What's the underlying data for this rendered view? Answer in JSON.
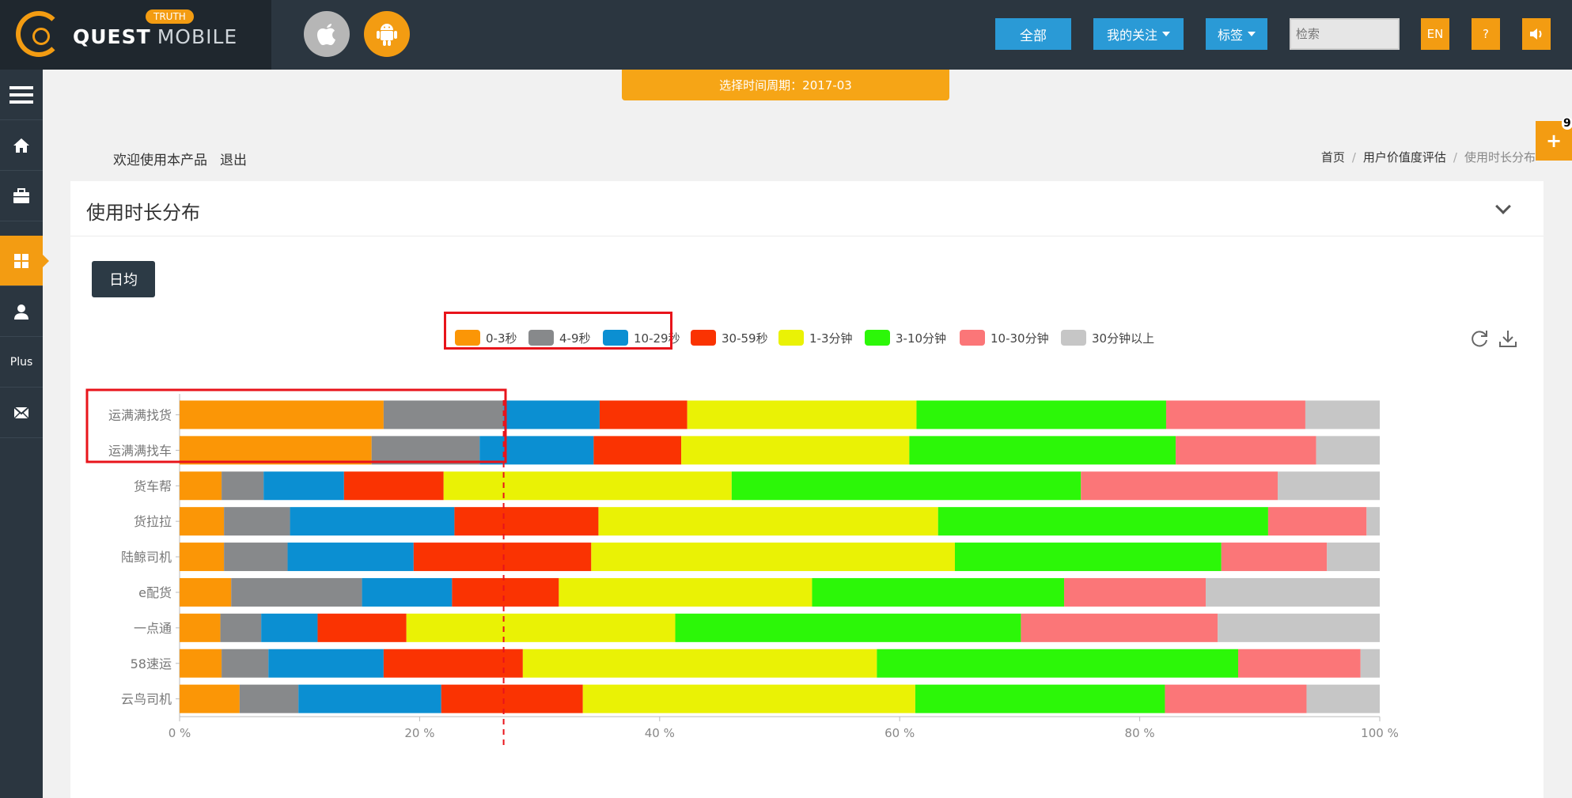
{
  "header": {
    "brand": "QUEST",
    "brand_sub": "MOBILE",
    "brand_tag": "TRUTH",
    "btn_all": "全部",
    "btn_follow": "我的关注",
    "btn_tags": "标签",
    "search_placeholder": "检索",
    "btn_lang": "EN",
    "btn_help": "?"
  },
  "sidebar": {
    "plus_label": "Plus"
  },
  "period_label": "选择时间周期：2017-03",
  "welcome": {
    "text": "欢迎使用本产品",
    "logout": "退出"
  },
  "breadcrumb": [
    "首页",
    "用户价值度评估",
    "使用时长分布"
  ],
  "float_badge": "9",
  "panel": {
    "title": "使用时长分布",
    "avg_button": "日均"
  },
  "colors": {
    "accent": "#f39c12",
    "primary_blue": "#2a9ad6",
    "dark": "#2b3640",
    "highlight_red": "#e8141b"
  },
  "chart_data": {
    "type": "bar",
    "orientation": "horizontal",
    "stacked": "percent",
    "categories": [
      "运满满找货",
      "运满满找车",
      "货车帮",
      "货拉拉",
      "陆鲸司机",
      "e配货",
      "一点通",
      "58速运",
      "云鸟司机"
    ],
    "series": [
      {
        "name": "0-3秒",
        "color": "#fb9606",
        "values": [
          17,
          16,
          3.5,
          3.7,
          3.7,
          4.3,
          3.4,
          3.5,
          5
        ]
      },
      {
        "name": "4-9秒",
        "color": "#87898b",
        "values": [
          10,
          9,
          3.5,
          5.5,
          5.3,
          10.9,
          3.4,
          3.9,
          4.9
        ]
      },
      {
        "name": "10-29秒",
        "color": "#0b8fd2",
        "values": [
          8,
          9.5,
          6.7,
          13.7,
          10.5,
          7.5,
          4.7,
          9.6,
          11.9
        ]
      },
      {
        "name": "30-59秒",
        "color": "#fa3302",
        "values": [
          7.3,
          7.3,
          8.3,
          12,
          14.8,
          8.9,
          7.4,
          11.6,
          11.8
        ]
      },
      {
        "name": "1-3分钟",
        "color": "#eaf205",
        "values": [
          19.1,
          19,
          24,
          28.3,
          30.3,
          21.1,
          22.4,
          29.5,
          27.7
        ]
      },
      {
        "name": "3-10分钟",
        "color": "#2cf708",
        "values": [
          20.8,
          22.2,
          29.1,
          27.5,
          22.2,
          21,
          28.8,
          30.1,
          20.8
        ]
      },
      {
        "name": "10-30分钟",
        "color": "#fb7678",
        "values": [
          11.6,
          11.7,
          16.4,
          8.2,
          8.8,
          11.8,
          16.4,
          10.2,
          11.8
        ]
      },
      {
        "name": "30分钟以上",
        "color": "#c6c6c6",
        "values": [
          6.2,
          5.3,
          8.5,
          1.1,
          4.4,
          14.5,
          13.5,
          1.6,
          6.1
        ]
      }
    ],
    "x_ticks": [
      "0 %",
      "20 %",
      "40 %",
      "60 %",
      "80 %",
      "100 %"
    ],
    "xlim": [
      0,
      100
    ],
    "reference_line": 27,
    "legend_position": "top-center",
    "highlighted_series": [
      "0-3秒",
      "4-9秒"
    ],
    "highlighted_categories": [
      "运满满找货",
      "运满满找车"
    ]
  }
}
